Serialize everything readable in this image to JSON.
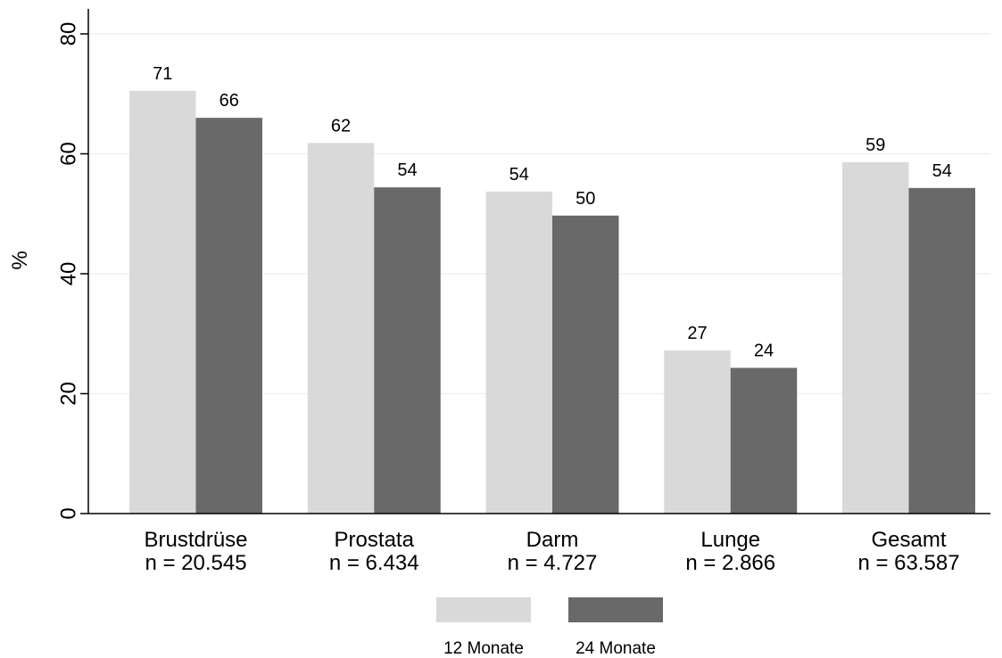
{
  "chart_data": {
    "type": "bar",
    "title": "",
    "xlabel": "",
    "ylabel": "%",
    "ylim": [
      0,
      80
    ],
    "yticks": [
      0,
      20,
      40,
      60,
      80
    ],
    "grid": true,
    "legend_position": "bottom",
    "categories": [
      {
        "name": "Brustdrüse",
        "n": "n = 20.545"
      },
      {
        "name": "Prostata",
        "n": "n = 6.434"
      },
      {
        "name": "Darm",
        "n": "n = 4.727"
      },
      {
        "name": "Lunge",
        "n": "n = 2.866"
      },
      {
        "name": "Gesamt",
        "n": "n = 63.587"
      }
    ],
    "series": [
      {
        "name": "12 Monate",
        "color": "#d9d9d9",
        "values": [
          70.5,
          61.8,
          53.7,
          27.2,
          58.6
        ],
        "labels": [
          "71",
          "62",
          "54",
          "27",
          "59"
        ]
      },
      {
        "name": "24 Monate",
        "color": "#696969",
        "values": [
          66.0,
          54.4,
          49.7,
          24.3,
          54.3
        ],
        "labels": [
          "66",
          "54",
          "50",
          "24",
          "54"
        ]
      }
    ]
  }
}
